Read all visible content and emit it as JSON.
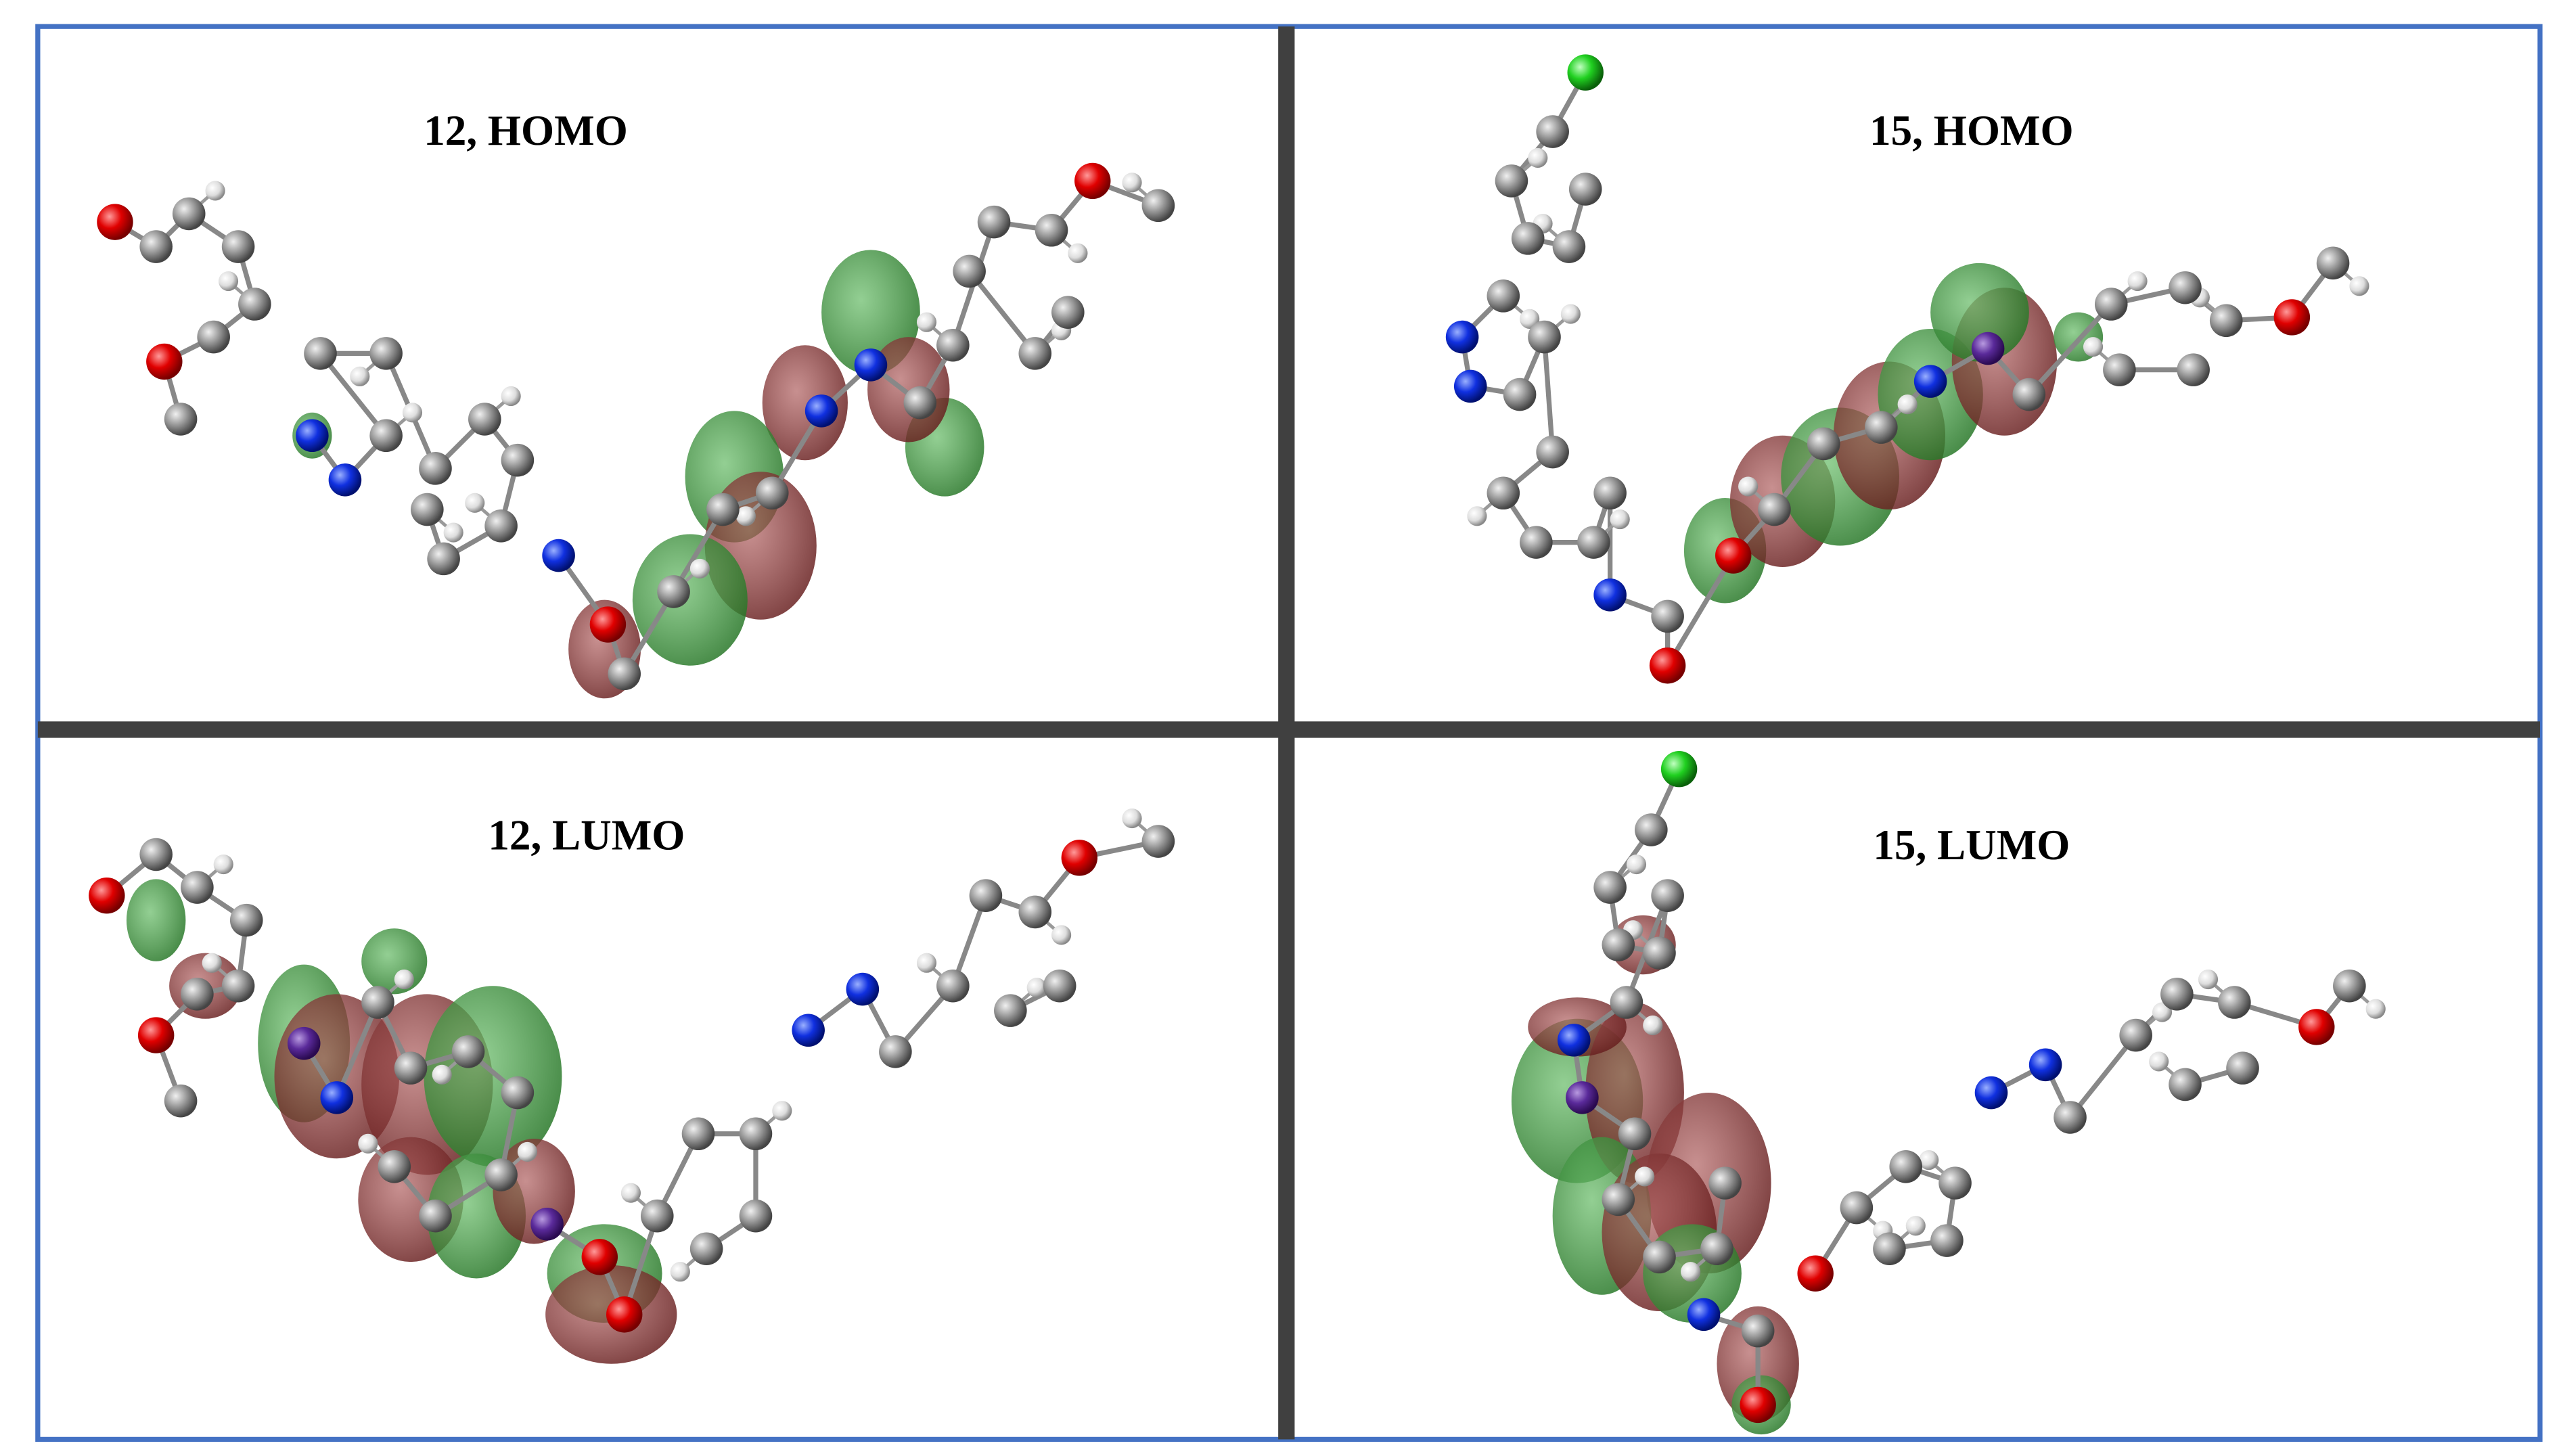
{
  "panels": [
    {
      "label": "12, HOMO"
    },
    {
      "label": "15, HOMO"
    },
    {
      "label": "12, LUMO"
    },
    {
      "label": "15, LUMO"
    }
  ]
}
